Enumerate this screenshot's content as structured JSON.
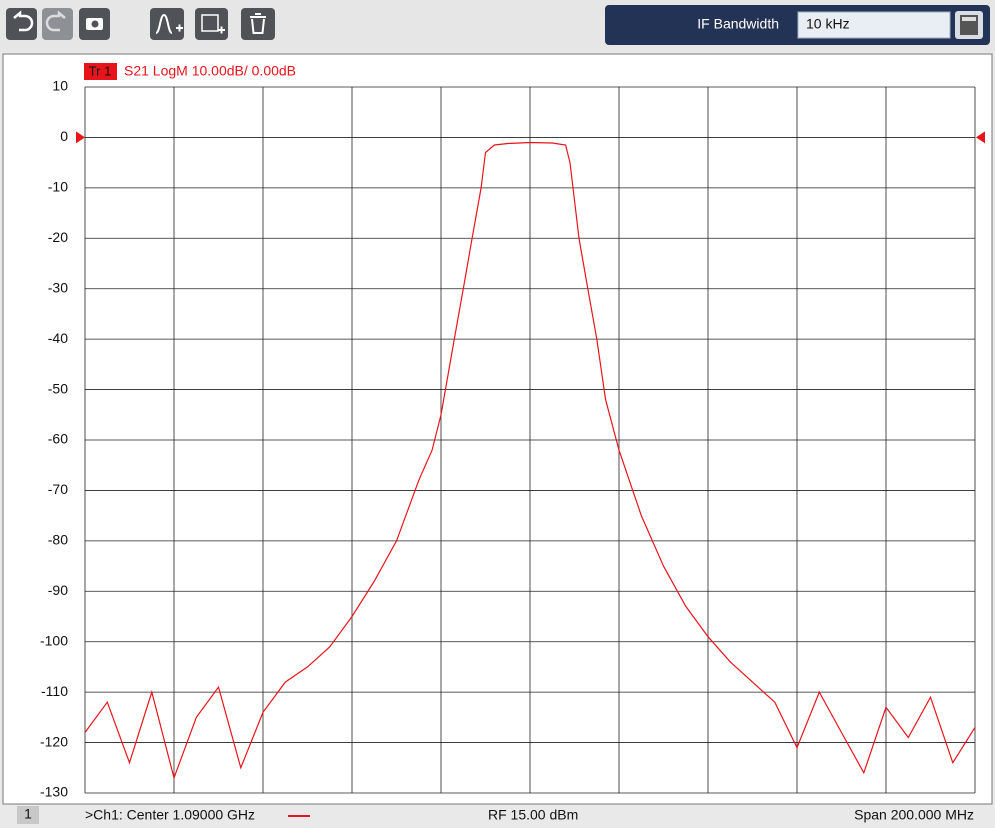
{
  "toolbar": {
    "if_label": "IF Bandwidth",
    "if_value": "10 kHz"
  },
  "chart_data": {
    "type": "line",
    "trace_id": "Tr 1",
    "trace_label": "S21 LogM 10.00dB/ 0.00dB",
    "color": "#e8141b",
    "grid": true,
    "xlim": [
      990,
      1190
    ],
    "xticks": [
      990,
      1010,
      1030,
      1050,
      1070,
      1090,
      1110,
      1130,
      1150,
      1170,
      1190
    ],
    "ylim": [
      -130,
      10
    ],
    "yticks": [
      10,
      0,
      -10,
      -20,
      -30,
      -40,
      -50,
      -60,
      -70,
      -80,
      -90,
      -100,
      -110,
      -120,
      -130
    ],
    "x": [
      990,
      995,
      1000,
      1005,
      1010,
      1015,
      1020,
      1025,
      1030,
      1035,
      1040,
      1045,
      1050,
      1055,
      1060,
      1065,
      1068,
      1070,
      1073,
      1075,
      1077,
      1079,
      1080,
      1082,
      1085,
      1090,
      1095,
      1098,
      1099,
      1101,
      1103,
      1105,
      1107,
      1110,
      1115,
      1120,
      1125,
      1130,
      1135,
      1140,
      1145,
      1150,
      1155,
      1160,
      1165,
      1170,
      1175,
      1180,
      1185,
      1190
    ],
    "values": [
      -118,
      -112,
      -124,
      -110,
      -127,
      -115,
      -109,
      -125,
      -114,
      -108,
      -105,
      -101,
      -95,
      -88,
      -80,
      -68,
      -62,
      -55,
      -40,
      -30,
      -20,
      -10,
      -3,
      -1.5,
      -1.2,
      -1,
      -1.1,
      -1.5,
      -5,
      -20,
      -30,
      -40,
      -52,
      -62,
      -75,
      -85,
      -93,
      -99,
      -104,
      -108,
      -112,
      -121,
      -110,
      -118,
      -126,
      -113,
      -119,
      -111,
      -124,
      -117
    ]
  },
  "footer": {
    "channel_number": "1",
    "center": ">Ch1: Center 1.09000 GHz",
    "power": "RF 15.00 dBm",
    "span": "Span 200.000 MHz"
  }
}
